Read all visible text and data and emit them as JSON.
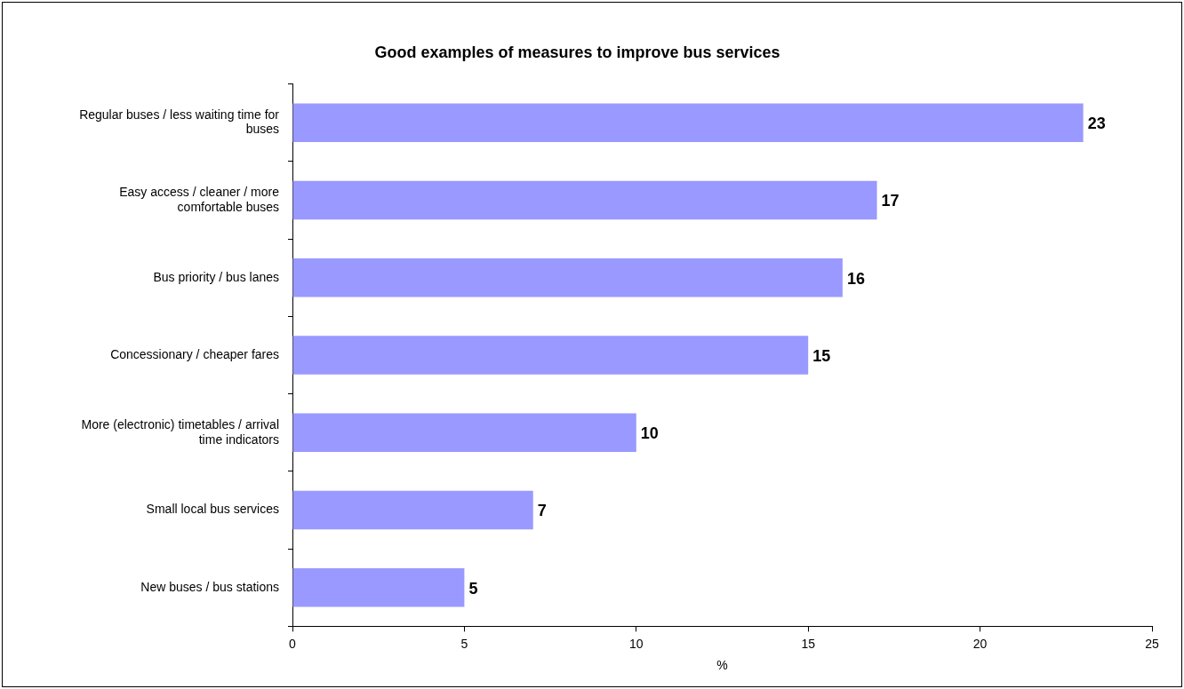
{
  "chart_data": {
    "type": "bar",
    "orientation": "horizontal",
    "title": "Good examples of measures to improve bus services",
    "categories": [
      "Regular buses / less waiting time for buses",
      "Easy access / cleaner / more comfortable buses",
      "Bus priority / bus lanes",
      "Concessionary / cheaper fares",
      "More (electronic) timetables / arrival time indicators",
      "Small local bus services",
      "New buses / bus stations"
    ],
    "values": [
      23,
      17,
      16,
      15,
      10,
      7,
      5
    ],
    "color": "#9999ff",
    "xlim": [
      0,
      25
    ],
    "xticks": [
      0,
      5,
      10,
      15,
      20,
      25
    ],
    "xlabel": "%",
    "data_labels": true
  }
}
